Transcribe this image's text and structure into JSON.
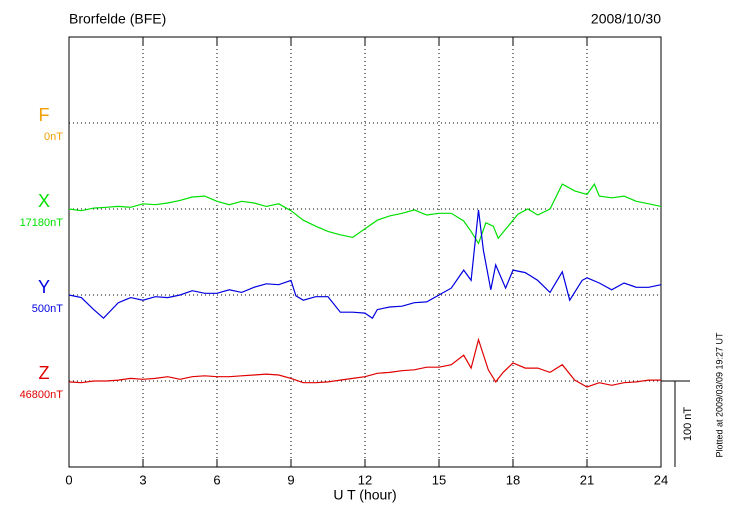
{
  "chart_data": {
    "type": "line",
    "title": "Brorfelde (BFE)",
    "date": "2008/10/30",
    "xlabel": "U T (hour)",
    "plotted": "Plotted at 2009/03/09 19:27 UT",
    "xlim": [
      0,
      24
    ],
    "xticks": [
      0,
      3,
      6,
      9,
      12,
      15,
      18,
      21,
      24
    ],
    "grid": true,
    "scale_bar": {
      "value": 100,
      "label": "100 nT"
    },
    "series": [
      {
        "name": "F",
        "baseline": "0nT",
        "color": "#f0a000"
      },
      {
        "name": "X",
        "baseline": "17180nT",
        "color": "#00e000",
        "x": [
          0,
          0.5,
          1,
          1.5,
          2,
          2.5,
          3,
          3.5,
          4,
          4.5,
          5,
          5.5,
          6,
          6.5,
          7,
          7.5,
          8,
          8.5,
          9,
          9.5,
          10,
          10.5,
          11,
          11.5,
          12,
          12.5,
          13,
          13.5,
          14,
          14.5,
          15,
          15.5,
          16,
          16.3,
          16.6,
          16.9,
          17.2,
          17.4,
          17.8,
          18.2,
          18.6,
          19,
          19.5,
          20,
          20.5,
          21,
          21.3,
          21.5,
          22,
          22.5,
          23,
          23.5,
          24
        ],
        "values": [
          0,
          -2,
          1,
          2,
          3,
          2,
          6,
          5,
          7,
          10,
          14,
          15,
          9,
          5,
          9,
          7,
          3,
          6,
          -2,
          -13,
          -20,
          -26,
          -30,
          -33,
          -23,
          -13,
          -8,
          -5,
          -1,
          -7,
          -5,
          -5,
          -14,
          -26,
          -40,
          -16,
          -20,
          -34,
          -20,
          -6,
          0,
          -7,
          0,
          29,
          21,
          17,
          29,
          15,
          13,
          15,
          9,
          6,
          3
        ]
      },
      {
        "name": "Y",
        "baseline": "500nT",
        "color": "#0000e0",
        "x": [
          0,
          0.5,
          1,
          1.4,
          2,
          2.5,
          3,
          3.5,
          4,
          4.5,
          5,
          5.5,
          6,
          6.5,
          7,
          7.5,
          8,
          8.5,
          9,
          9.2,
          9.5,
          10,
          10.5,
          11,
          11.5,
          12,
          12.3,
          12.5,
          13,
          13.5,
          14,
          14.5,
          15,
          15.5,
          16,
          16.3,
          16.6,
          16.8,
          17.1,
          17.3,
          17.7,
          18,
          18.5,
          19,
          19.5,
          20,
          20.3,
          20.8,
          21,
          21.5,
          22,
          22.5,
          23,
          23.5,
          24
        ],
        "values": [
          0,
          -3,
          -17,
          -27,
          -9,
          -3,
          -6,
          -2,
          -3,
          0,
          5,
          2,
          2,
          6,
          3,
          9,
          13,
          12,
          17,
          -1,
          -6,
          -2,
          -2,
          -20,
          -20,
          -21,
          -27,
          -17,
          -14,
          -13,
          -9,
          -8,
          0,
          8,
          29,
          17,
          99,
          52,
          6,
          35,
          8,
          29,
          26,
          17,
          3,
          27,
          -6,
          17,
          20,
          14,
          6,
          14,
          9,
          9,
          12
        ]
      },
      {
        "name": "Z",
        "baseline": "46800nT",
        "color": "#e00000",
        "x": [
          0,
          0.5,
          1,
          1.5,
          2,
          2.5,
          3,
          3.5,
          4,
          4.5,
          5,
          5.5,
          6,
          6.5,
          7,
          7.5,
          8,
          8.5,
          9,
          9.5,
          10,
          10.5,
          11,
          11.5,
          12,
          12.5,
          13,
          13.5,
          14,
          14.5,
          15,
          15.5,
          16,
          16.3,
          16.6,
          17,
          17.3,
          17.6,
          18,
          18.5,
          19,
          19.5,
          20,
          20.5,
          21,
          21.5,
          22,
          22.5,
          23,
          23.5,
          24
        ],
        "values": [
          -1,
          -2,
          0,
          0,
          1,
          3,
          2,
          3,
          5,
          2,
          5,
          6,
          5,
          5,
          6,
          7,
          8,
          7,
          3,
          -2,
          -2,
          -1,
          1,
          3,
          5,
          9,
          10,
          12,
          13,
          16,
          16,
          19,
          30,
          15,
          48,
          13,
          -1,
          10,
          21,
          15,
          15,
          10,
          19,
          1,
          -7,
          -2,
          -5,
          -2,
          -1,
          1,
          1
        ]
      }
    ]
  }
}
